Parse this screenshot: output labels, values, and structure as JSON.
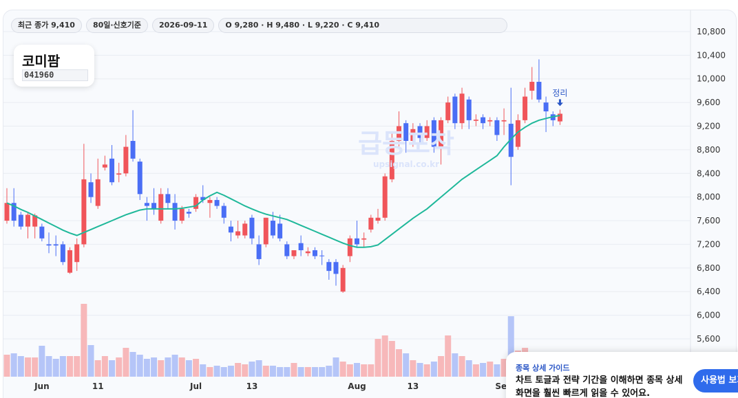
{
  "header": {
    "pills": [
      "최근 종가 9,410",
      "80일·신호기준",
      "2026-09-11",
      "O 9,280 · H 9,480 · L 9,220 · C 9,410"
    ]
  },
  "stock": {
    "name": "코미팜",
    "code": "041960"
  },
  "watermark": {
    "title": "급등포착",
    "url": "upsignal.co.kr"
  },
  "guide": {
    "title": "종목 상세 가이드",
    "body": "차트 토글과 전략 기간을 이해하면 종목 상세 화면을 훨씬 빠르게 읽을 수 있어요.",
    "button": "사용법 보기"
  },
  "chart_data": {
    "type": "candlestick",
    "categories": [
      null,
      null,
      null,
      null,
      null,
      "Jun",
      null,
      null,
      null,
      null,
      null,
      null,
      null,
      "11",
      null,
      null,
      null,
      null,
      null,
      null,
      null,
      null,
      null,
      null,
      null,
      null,
      null,
      "Jul",
      null,
      null,
      null,
      null,
      null,
      null,
      null,
      "13",
      null,
      null,
      null,
      null,
      null,
      null,
      null,
      null,
      null,
      null,
      null,
      null,
      null,
      null,
      "Aug",
      null,
      null,
      null,
      null,
      null,
      null,
      null,
      "13",
      null,
      null,
      null,
      null,
      null,
      null,
      null,
      null,
      null,
      null,
      null,
      null,
      "Sep",
      null,
      null,
      null,
      null,
      null,
      null,
      null,
      null
    ],
    "open": [
      7600,
      7900,
      7700,
      7500,
      7500,
      7500,
      7200,
      7200,
      7200,
      6720,
      6900,
      7200,
      8250,
      7850,
      8500,
      8650,
      8380,
      8400,
      8950,
      8600,
      7900,
      7900,
      7600,
      8050,
      7900,
      7600,
      7750,
      7800,
      8000,
      7900,
      7950,
      7850,
      7500,
      7350,
      7350,
      7650,
      7200,
      7200,
      7600,
      7550,
      7200,
      7000,
      7220,
      7050,
      7100,
      7010,
      6900,
      6900,
      6400,
      7000,
      7300,
      7280,
      7450,
      7600,
      7650,
      8300,
      8950,
      9250,
      8950,
      9200,
      9000,
      9300,
      8850,
      9300,
      9700,
      9250,
      9650,
      9290,
      9350,
      9280,
      9300,
      9280,
      9240,
      8850,
      9300,
      9800,
      9950,
      9600,
      9400,
      9280
    ],
    "high": [
      8150,
      8150,
      7750,
      7750,
      7720,
      7550,
      7400,
      7350,
      7250,
      7150,
      7300,
      8900,
      8400,
      8650,
      8700,
      8880,
      8580,
      9050,
      9470,
      8650,
      8000,
      8150,
      8150,
      8150,
      8050,
      7850,
      7800,
      8050,
      8200,
      8000,
      8000,
      7900,
      7600,
      7600,
      7600,
      7700,
      7350,
      7650,
      7750,
      7700,
      7250,
      7100,
      7350,
      7150,
      7150,
      7100,
      6950,
      6950,
      6850,
      7350,
      7600,
      7400,
      7700,
      7800,
      8400,
      9100,
      9450,
      9300,
      9250,
      9250,
      9300,
      9350,
      9350,
      9700,
      9750,
      9850,
      9700,
      9400,
      9400,
      9350,
      9350,
      9500,
      9850,
      9400,
      9850,
      10200,
      10330,
      9700,
      9450,
      9480
    ],
    "low": [
      7550,
      7500,
      7450,
      7300,
      7300,
      7250,
      7050,
      7000,
      6850,
      6700,
      6750,
      7150,
      7900,
      7800,
      8450,
      8200,
      8250,
      8350,
      8600,
      7950,
      7600,
      7700,
      7550,
      7800,
      7450,
      7550,
      7650,
      7750,
      7900,
      7650,
      7800,
      7550,
      7250,
      7300,
      7300,
      7200,
      6850,
      7150,
      7300,
      7250,
      6950,
      6950,
      7000,
      7000,
      6950,
      6850,
      6600,
      6500,
      6380,
      6900,
      7150,
      7150,
      7400,
      7550,
      7600,
      8250,
      8850,
      8750,
      8850,
      8900,
      8950,
      8750,
      8550,
      9250,
      9150,
      9150,
      9150,
      9200,
      9150,
      9200,
      8950,
      9050,
      8200,
      8800,
      9250,
      9650,
      9600,
      9100,
      9200,
      9220
    ],
    "close": [
      7900,
      7600,
      7500,
      7700,
      7690,
      7300,
      7180,
      7180,
      6900,
      7100,
      7200,
      8300,
      8000,
      8300,
      8550,
      8250,
      8400,
      8850,
      8650,
      8050,
      7850,
      7800,
      8050,
      7900,
      7600,
      7800,
      7720,
      8000,
      7950,
      7950,
      7850,
      7650,
      7400,
      7420,
      7550,
      7300,
      6950,
      7650,
      7350,
      7300,
      7000,
      7100,
      7100,
      7080,
      7000,
      7000,
      6750,
      6700,
      6800,
      7300,
      7200,
      7300,
      7650,
      7650,
      8350,
      8950,
      9200,
      8950,
      9150,
      9000,
      9200,
      8850,
      9300,
      9600,
      9250,
      9750,
      9300,
      9310,
      9250,
      9300,
      9050,
      9300,
      8680,
      9300,
      9700,
      9950,
      9650,
      9450,
      9300,
      9410
    ],
    "volume": [
      320,
      340,
      300,
      280,
      280,
      450,
      300,
      260,
      300,
      300,
      300,
      1060,
      460,
      240,
      300,
      240,
      280,
      420,
      360,
      320,
      260,
      280,
      240,
      280,
      320,
      280,
      240,
      260,
      180,
      140,
      160,
      140,
      160,
      200,
      180,
      220,
      240,
      160,
      160,
      140,
      140,
      200,
      140,
      140,
      140,
      140,
      160,
      280,
      220,
      180,
      200,
      180,
      180,
      550,
      600,
      520,
      400,
      340,
      240,
      200,
      180,
      220,
      300,
      600,
      340,
      300,
      240,
      180,
      200,
      220,
      180,
      260,
      880,
      380,
      420,
      300,
      240,
      180,
      140,
      140
    ],
    "ma": {
      "color": "#1fb89a",
      "values": [
        7900,
        7850,
        7790,
        7740,
        7680,
        7620,
        7560,
        7500,
        7440,
        7390,
        7350,
        7400,
        7450,
        7500,
        7550,
        7600,
        7650,
        7700,
        7740,
        7780,
        7800,
        7800,
        7800,
        7800,
        7800,
        7810,
        7830,
        7850,
        7950,
        8020,
        8080,
        8030,
        7970,
        7910,
        7850,
        7800,
        7750,
        7710,
        7680,
        7650,
        7620,
        7570,
        7520,
        7470,
        7420,
        7370,
        7320,
        7270,
        7220,
        7180,
        7150,
        7150,
        7160,
        7190,
        7280,
        7370,
        7460,
        7550,
        7640,
        7720,
        7800,
        7900,
        8000,
        8100,
        8200,
        8300,
        8380,
        8460,
        8540,
        8620,
        8700,
        8850,
        8980,
        9100,
        9180,
        9250,
        9300,
        9330,
        9360,
        9380
      ]
    },
    "up_color": "#f0555a",
    "down_color": "#4a6ef5",
    "up_volume_color": "#f7b8ba",
    "down_volume_color": "#b5c5f8",
    "annotation": "정리",
    "ylim": [
      4960,
      11160
    ],
    "yticks": [
      {
        "value": 5600,
        "label": "5,600"
      },
      {
        "value": 6000,
        "label": "6,000"
      },
      {
        "value": 6400,
        "label": "6,400"
      },
      {
        "value": 6800,
        "label": "6,800"
      },
      {
        "value": 7200,
        "label": "7,200"
      },
      {
        "value": 7600,
        "label": "7,600"
      },
      {
        "value": 8000,
        "label": "8,000"
      },
      {
        "value": 8400,
        "label": "8,400"
      },
      {
        "value": 8800,
        "label": "8,800"
      },
      {
        "value": 9200,
        "label": "9,200"
      },
      {
        "value": 9600,
        "label": "9,600"
      },
      {
        "value": 10000,
        "label": "10,000"
      },
      {
        "value": 10400,
        "label": "10,400"
      },
      {
        "value": 10800,
        "label": "10,800"
      }
    ],
    "grid": true
  }
}
